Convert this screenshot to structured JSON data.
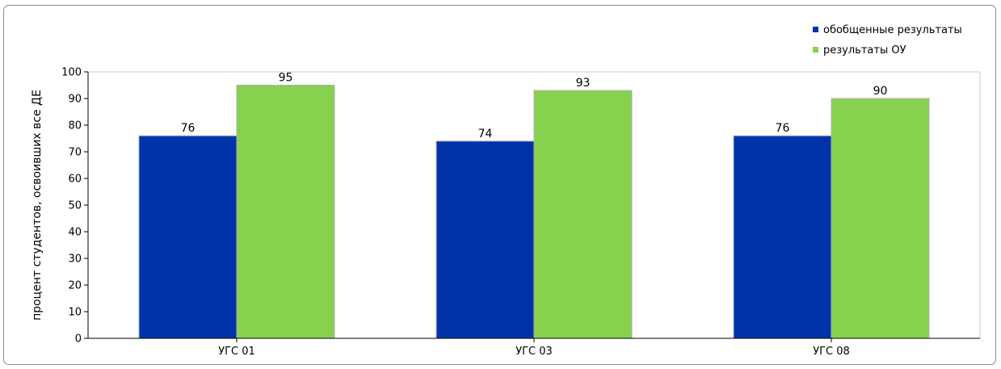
{
  "chart_data": {
    "type": "bar",
    "title": "",
    "xlabel": "",
    "ylabel": "процент студентов, освоивших все ДЕ",
    "categories": [
      "УГС 01",
      "УГС 03",
      "УГС 08"
    ],
    "series": [
      {
        "name": "обобщенные результаты",
        "values": [
          76,
          74,
          76
        ],
        "color": "#0033aa"
      },
      {
        "name": "результаты ОУ",
        "values": [
          95,
          93,
          90
        ],
        "color": "#88d14e"
      }
    ],
    "ylim": [
      0,
      100
    ],
    "yticks": [
      0,
      10,
      20,
      30,
      40,
      50,
      60,
      70,
      80,
      90,
      100
    ],
    "grid": false,
    "legend_position": "top-right"
  }
}
